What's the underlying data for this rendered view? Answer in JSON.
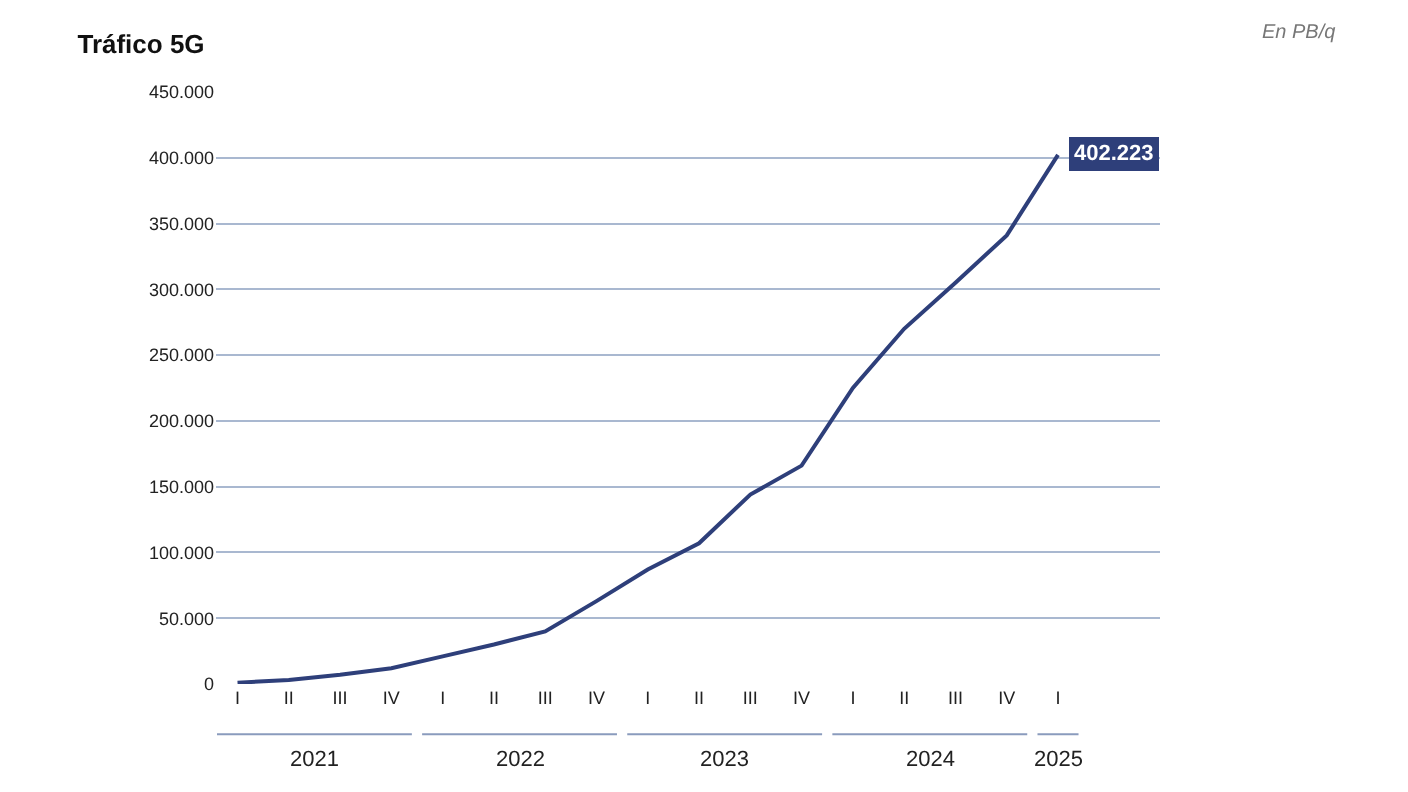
{
  "chart_data": {
    "type": "line",
    "title": "Tráfico 5G",
    "annotations": [
      "En PB/q",
      "2021",
      "2022",
      "2023",
      "2024",
      "2025"
    ],
    "categories": [
      "I",
      "II",
      "III",
      "IV",
      "I",
      "II",
      "III",
      "IV",
      "I",
      "II",
      "III",
      "IV",
      "I",
      "II",
      "III",
      "IV",
      "I"
    ],
    "series": [
      {
        "color": "#2e3f7a",
        "values": [
          1000,
          3000,
          7000,
          12000,
          21000,
          30000,
          40000,
          63000,
          87000,
          107000,
          144000,
          166000,
          225000,
          270000,
          305000,
          341000,
          402223
        ],
        "value_labels": [
          null,
          null,
          null,
          null,
          null,
          null,
          null,
          null,
          null,
          null,
          null,
          null,
          null,
          null,
          null,
          null,
          "402.223"
        ]
      }
    ],
    "ylim": [
      0,
      450000
    ],
    "yticks": [
      0,
      {
        "value": 50000,
        "label": "50.000"
      },
      {
        "value": 100000,
        "label": "100.000"
      },
      {
        "value": 150000,
        "label": "150.000"
      },
      {
        "value": 200000,
        "label": "200.000"
      },
      {
        "value": 250000,
        "label": "250.000"
      },
      {
        "value": 300000,
        "label": "300.000"
      },
      {
        "value": 350000,
        "label": "350.000"
      },
      {
        "value": 400000,
        "label": "400.000"
      },
      {
        "value": 450000,
        "label": "450.000"
      }
    ],
    "grid": "y",
    "legend": false,
    "marker": "none",
    "line_style": "solid"
  }
}
